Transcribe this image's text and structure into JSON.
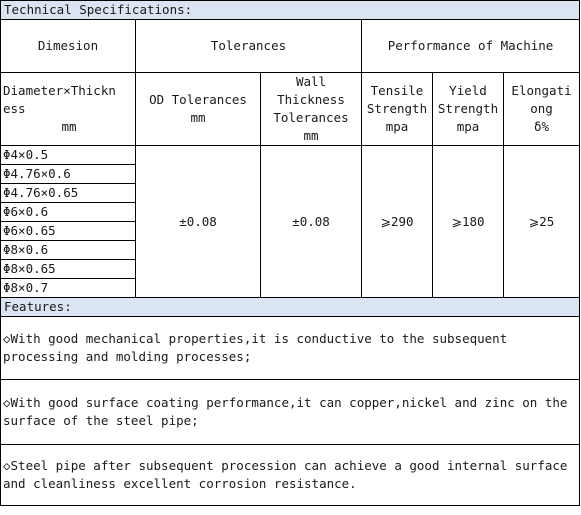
{
  "title": "Technical Specifications:",
  "groups": {
    "dimension": "Dimesion",
    "tolerances": "Tolerances",
    "performance": "Performance of Machine"
  },
  "columns": {
    "diameter": {
      "line1": "Diameter×Thickn",
      "line2": "ess",
      "unit": "mm"
    },
    "od": {
      "line1": "OD Tolerances",
      "unit": "mm"
    },
    "wall": {
      "line1": "Wall",
      "line2": "Thickness",
      "line3": "Tolerances",
      "unit": "mm"
    },
    "tensile": {
      "line1": "Tensile",
      "line2": "Strength",
      "unit": "mpa"
    },
    "yield": {
      "line1": "Yield",
      "line2": "Strength",
      "unit": "mpa"
    },
    "elong": {
      "line1": "Elongati",
      "line2": "ong",
      "unit": "δ%"
    }
  },
  "sizes": [
    "Φ4×0.5",
    "Φ4.76×0.6",
    "Φ4.76×0.65",
    "Φ6×0.6",
    "Φ6×0.65",
    "Φ8×0.6",
    "Φ8×0.65",
    "Φ8×0.7"
  ],
  "values": {
    "od": "±0.08",
    "wall": "±0.08",
    "tensile": "⩾290",
    "yield": "⩾180",
    "elong": "⩾25"
  },
  "features_title": "Features:",
  "features": [
    "◇With good mechanical properties,it is conductive to the subsequent processing and molding processes;",
    "◇With good surface coating performance,it can copper,nickel and zinc on the surface of the steel pipe;",
    "◇Steel pipe after subsequent procession can achieve a good internal surface and cleanliness excellent corrosion resistance."
  ]
}
